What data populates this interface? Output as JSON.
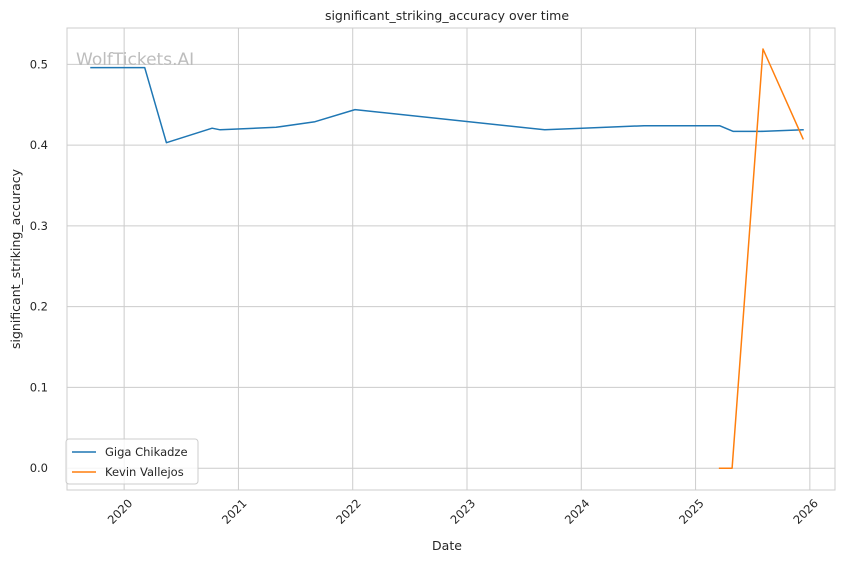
{
  "chart_data": {
    "type": "line",
    "title": "significant_striking_accuracy over time",
    "xlabel": "Date",
    "ylabel": "significant_striking_accuracy",
    "watermark": "WolfTickets.AI",
    "x_ticks": [
      "2020",
      "2021",
      "2022",
      "2023",
      "2024",
      "2025",
      "2026"
    ],
    "y_ticks": [
      "0.0",
      "0.1",
      "0.2",
      "0.3",
      "0.4",
      "0.5"
    ],
    "xlim": [
      2019.5,
      2026.22
    ],
    "ylim": [
      -0.027,
      0.545
    ],
    "grid": true,
    "legend_position": "lower-left",
    "series": [
      {
        "name": "Giga Chikadze",
        "color": "#1f77b4",
        "x": [
          2019.71,
          2020.18,
          2020.37,
          2020.77,
          2020.84,
          2021.33,
          2021.67,
          2022.02,
          2023.68,
          2024.55,
          2025.21,
          2025.33,
          2025.57,
          2025.94
        ],
        "y": [
          0.496,
          0.496,
          0.403,
          0.421,
          0.419,
          0.422,
          0.429,
          0.444,
          0.419,
          0.424,
          0.424,
          0.417,
          0.417,
          0.419
        ]
      },
      {
        "name": "Kevin Vallejos",
        "color": "#ff7f0e",
        "x": [
          2025.21,
          2025.32,
          2025.59,
          2025.94
        ],
        "y": [
          0.0,
          0.0,
          0.519,
          0.408
        ]
      }
    ]
  }
}
